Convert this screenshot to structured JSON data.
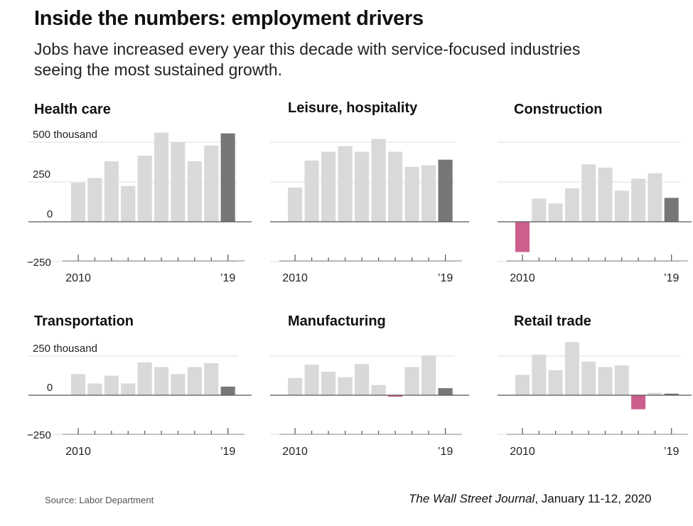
{
  "header": {
    "title": "Inside the numbers: employment drivers",
    "subtitle": "Jobs have increased every year this decade with service-focused industries seeing the most sustained growth."
  },
  "footer": {
    "source": "Source: Labor Department",
    "publication": "The Wall Street Journal",
    "date": ", January 11-12, 2020"
  },
  "colors": {
    "bar": "#d9d9d9",
    "highlight": "#777777",
    "negative": "#cc5f8e",
    "grid": "#dddddd",
    "baseline": "#555555"
  },
  "chart_data": [
    {
      "type": "bar",
      "title": "Health care",
      "x": [
        2010,
        2011,
        2012,
        2013,
        2014,
        2015,
        2016,
        2017,
        2018,
        2019
      ],
      "values": [
        245,
        275,
        380,
        225,
        415,
        560,
        500,
        380,
        480,
        555
      ],
      "highlight_index": 9,
      "ylim": [
        -250,
        500
      ],
      "yticks": [
        -250,
        0,
        250,
        500
      ],
      "ytick_labels": [
        "−250",
        "0",
        "250",
        "500 thousand"
      ],
      "xtick_labels": [
        "2010",
        "’19"
      ]
    },
    {
      "type": "bar",
      "title": "Leisure, hospitality",
      "x": [
        2010,
        2011,
        2012,
        2013,
        2014,
        2015,
        2016,
        2017,
        2018,
        2019
      ],
      "values": [
        215,
        385,
        440,
        475,
        440,
        520,
        440,
        345,
        355,
        390
      ],
      "highlight_index": 9,
      "ylim": [
        -250,
        500
      ],
      "yticks": [
        -250,
        0,
        250,
        500
      ],
      "ytick_labels": [
        "",
        "",
        "",
        ""
      ],
      "xtick_labels": [
        "2010",
        "’19"
      ]
    },
    {
      "type": "bar",
      "title": "Construction",
      "x": [
        2010,
        2011,
        2012,
        2013,
        2014,
        2015,
        2016,
        2017,
        2018,
        2019
      ],
      "values": [
        -190,
        145,
        115,
        210,
        360,
        340,
        195,
        270,
        305,
        150
      ],
      "highlight_index": 9,
      "ylim": [
        -250,
        500
      ],
      "yticks": [
        -250,
        0,
        250,
        500
      ],
      "ytick_labels": [
        "",
        "",
        "",
        ""
      ],
      "xtick_labels": [
        "2010",
        "’19"
      ]
    },
    {
      "type": "bar",
      "title": "Transportation",
      "x": [
        2010,
        2011,
        2012,
        2013,
        2014,
        2015,
        2016,
        2017,
        2018,
        2019
      ],
      "values": [
        135,
        75,
        125,
        75,
        210,
        180,
        135,
        180,
        205,
        55
      ],
      "highlight_index": 9,
      "ylim": [
        -250,
        250
      ],
      "yticks": [
        -250,
        0,
        250
      ],
      "ytick_labels": [
        "−250",
        "0",
        "250 thousand"
      ],
      "xtick_labels": [
        "2010",
        "’19"
      ]
    },
    {
      "type": "bar",
      "title": "Manufacturing",
      "x": [
        2010,
        2011,
        2012,
        2013,
        2014,
        2015,
        2016,
        2017,
        2018,
        2019
      ],
      "values": [
        110,
        195,
        150,
        115,
        200,
        65,
        -10,
        180,
        255,
        45
      ],
      "highlight_index": 9,
      "ylim": [
        -250,
        250
      ],
      "yticks": [
        -250,
        0,
        250
      ],
      "ytick_labels": [
        "",
        "",
        ""
      ],
      "xtick_labels": [
        "2010",
        "’19"
      ]
    },
    {
      "type": "bar",
      "title": "Retail trade",
      "x": [
        2010,
        2011,
        2012,
        2013,
        2014,
        2015,
        2016,
        2017,
        2018,
        2019
      ],
      "values": [
        130,
        260,
        160,
        340,
        215,
        180,
        190,
        -90,
        15,
        10
      ],
      "highlight_index": 9,
      "ylim": [
        -250,
        250
      ],
      "yticks": [
        -250,
        0,
        250
      ],
      "ytick_labels": [
        "",
        "",
        ""
      ],
      "xtick_labels": [
        "2010",
        "’19"
      ]
    }
  ]
}
